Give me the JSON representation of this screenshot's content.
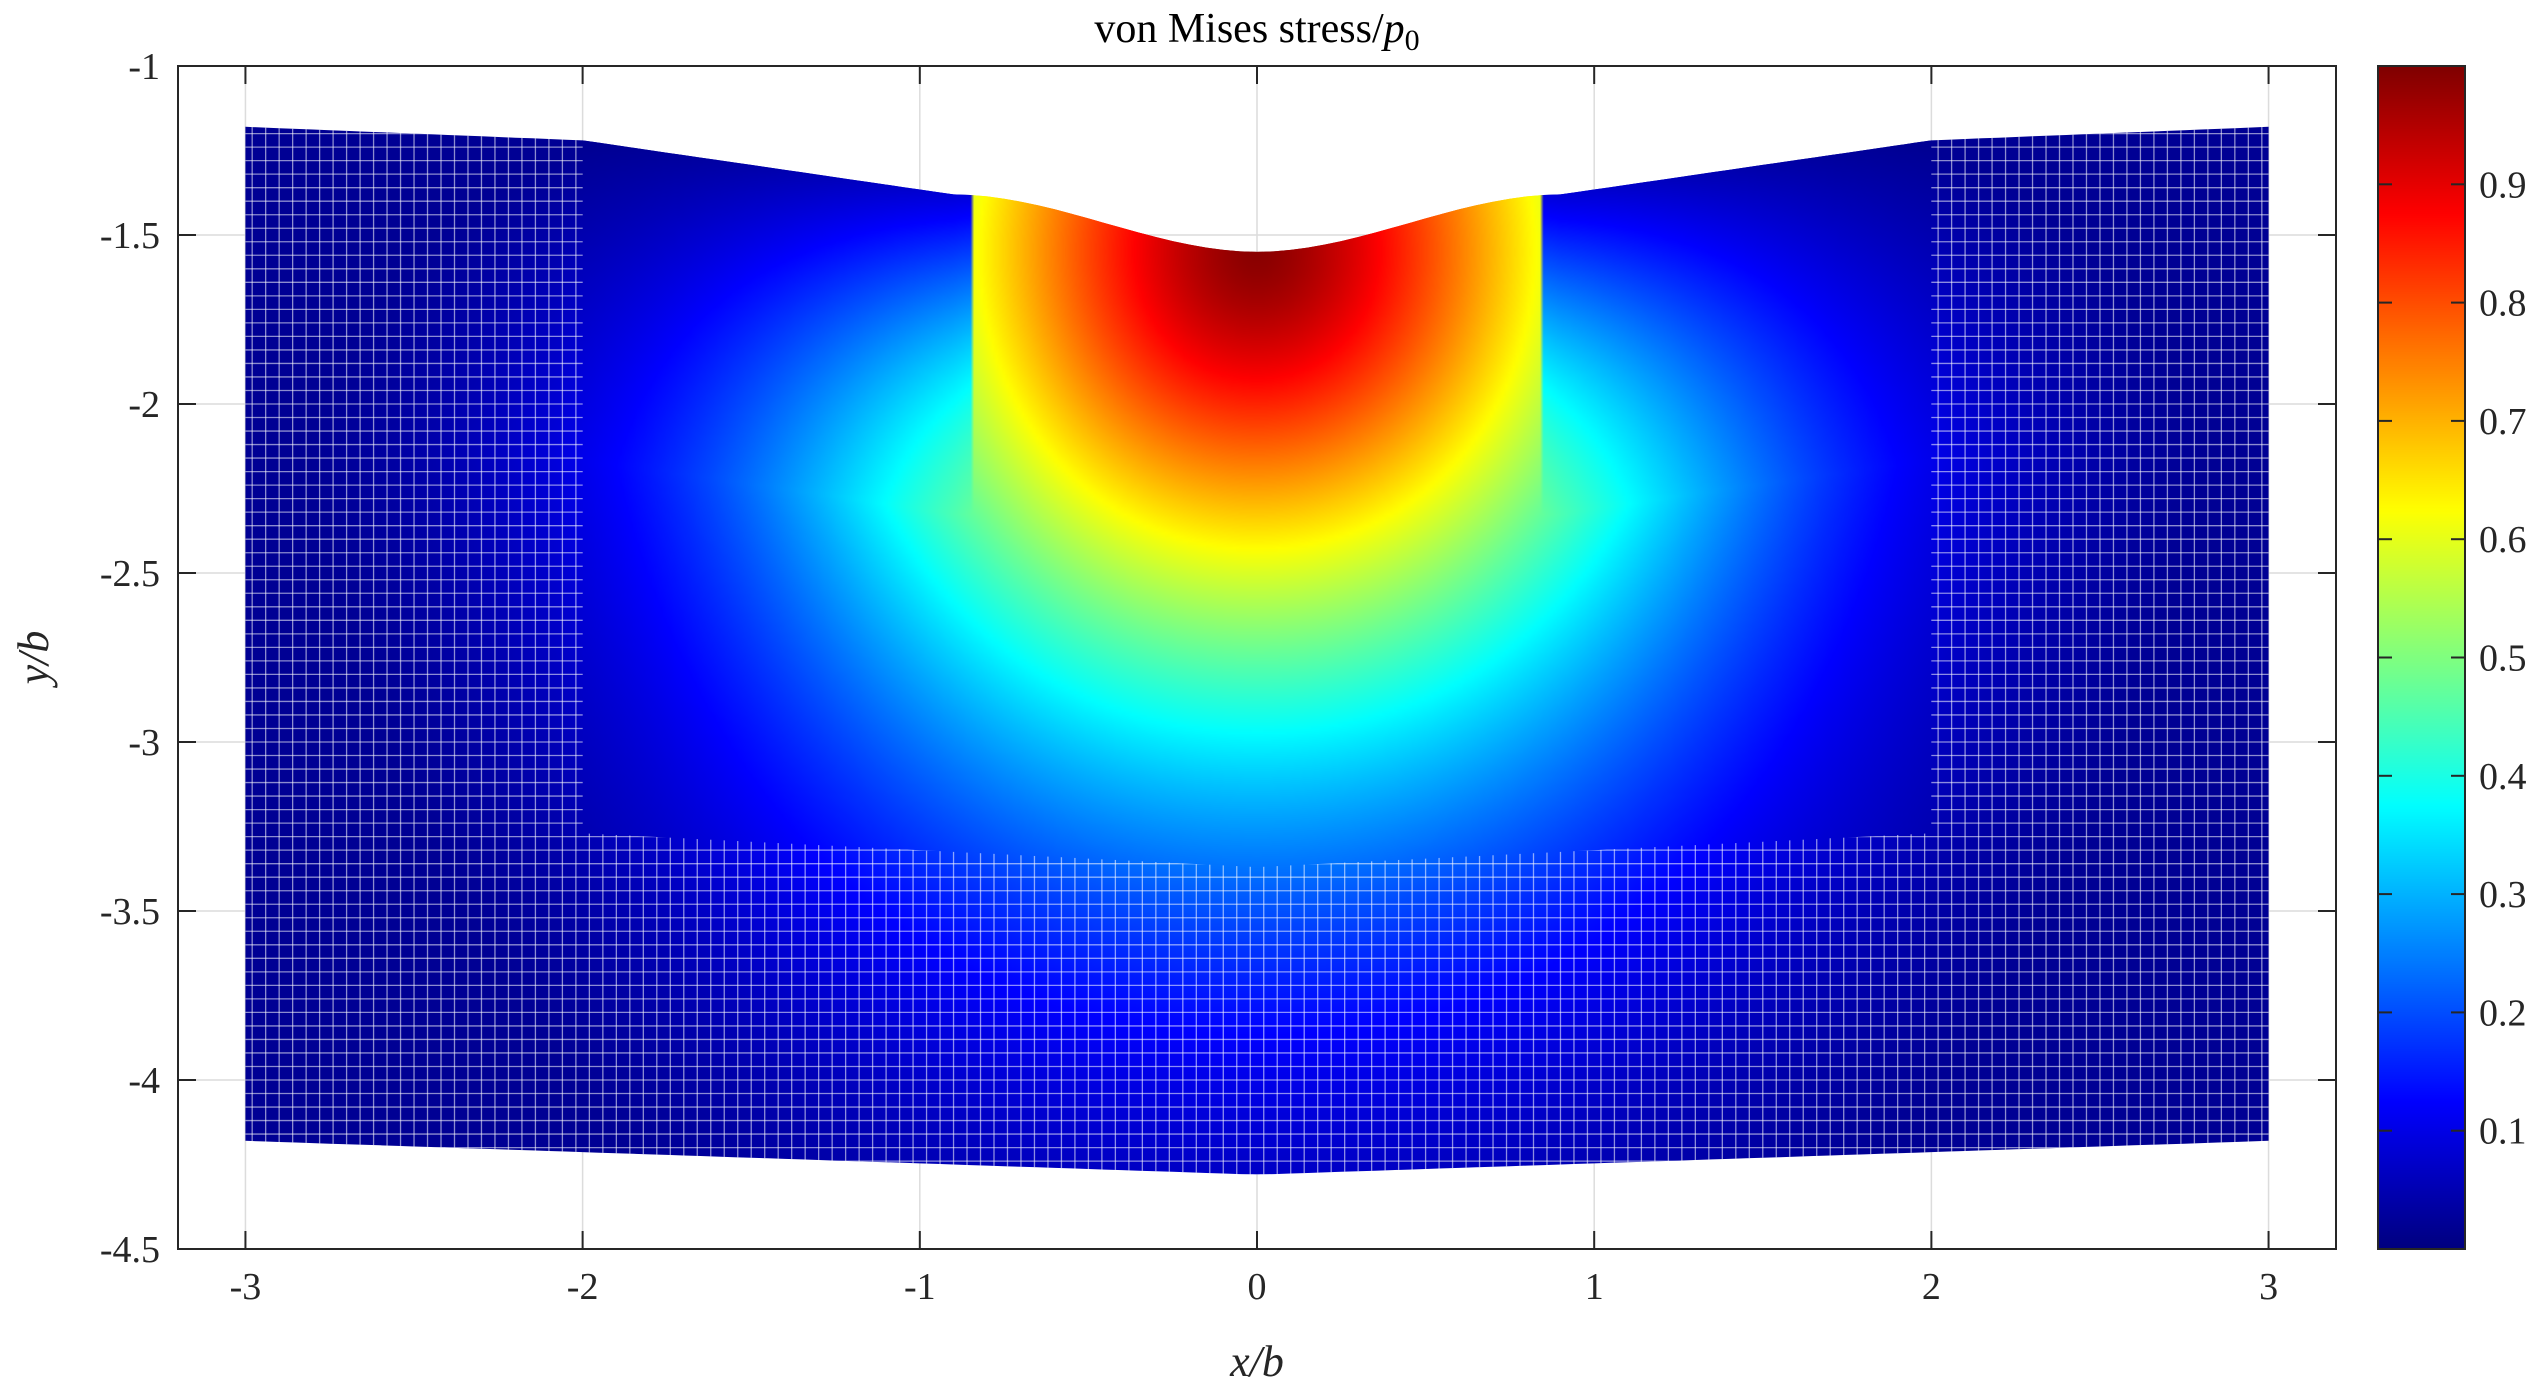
{
  "chart_data": {
    "type": "scatter",
    "title": {
      "main": "von Mises stress/",
      "var": "p",
      "sub": "0"
    },
    "xlabel": "x/b",
    "ylabel": "y/b",
    "xlim": [
      -3.2,
      3.2
    ],
    "ylim": [
      -4.5,
      -1
    ],
    "xticks": [
      -3,
      -2,
      -1,
      0,
      1,
      2,
      3
    ],
    "xtick_labels": [
      "-3",
      "-2",
      "-1",
      "0",
      "1",
      "2",
      "3"
    ],
    "yticks": [
      -1,
      -1.5,
      -2,
      -2.5,
      -3,
      -3.5,
      -4,
      -4.5
    ],
    "ytick_labels": [
      "-1",
      "-1.5",
      "-2",
      "-2.5",
      "-3",
      "-3.5",
      "-4",
      "-4.5"
    ],
    "grid": true,
    "colormap": "jet",
    "colorbar": {
      "limits": [
        0,
        1
      ],
      "ticks": [
        0.1,
        0.2,
        0.3,
        0.4,
        0.5,
        0.6,
        0.7,
        0.8,
        0.9
      ],
      "tick_labels": [
        "0.1",
        "0.2",
        "0.3",
        "0.4",
        "0.5",
        "0.6",
        "0.7",
        "0.8",
        "0.9"
      ]
    },
    "field": {
      "peak_location": [
        0,
        -1.55
      ],
      "peak_value": 0.99,
      "outer_region": {
        "x_range": [
          -3,
          3
        ],
        "top_surface_y_at_x": [
          [
            -3,
            -1.18
          ],
          [
            -2,
            -1.22
          ],
          [
            -0.9,
            -1.38
          ],
          [
            0,
            -1.55
          ],
          [
            0.9,
            -1.38
          ],
          [
            2,
            -1.22
          ],
          [
            3,
            -1.18
          ]
        ],
        "bottom_surface_y_at_x": [
          [
            -3,
            -4.18
          ],
          [
            0,
            -4.28
          ],
          [
            3,
            -4.18
          ]
        ],
        "grid_spacing": 0.04
      },
      "inner_region": {
        "x_range": [
          -2,
          2
        ],
        "bottom_y_at_x": [
          [
            -2,
            -3.27
          ],
          [
            0,
            -3.37
          ],
          [
            2,
            -3.27
          ]
        ]
      }
    }
  }
}
